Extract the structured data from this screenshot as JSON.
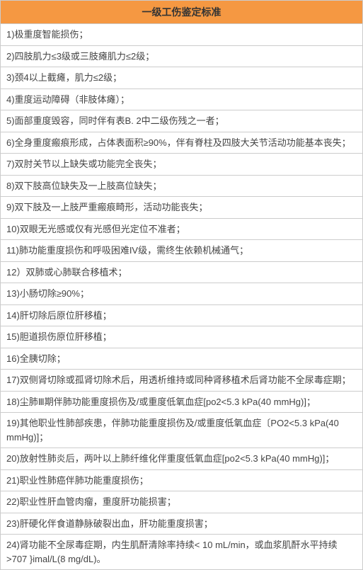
{
  "header": {
    "title": "一级工伤鉴定标准",
    "bg_color": "#f59842",
    "text_color": "#333333",
    "fontsize": 14,
    "font_weight": "bold"
  },
  "table": {
    "border_color": "#cccccc",
    "row_fontsize": 13,
    "row_text_color": "#444444",
    "background_color": "#ffffff",
    "rows": [
      "1)极重度智能损伤；",
      "2)四肢肌力≤3级或三肢瘫肌力≤2级；",
      "3)颈4以上截瘫，肌力≤2级；",
      "4)重度运动障碍（非肢体瘫）；",
      "5)面部重度毁容，同时伴有表B. 2中二级伤残之一者；",
      "6)全身重度瘢痕形成，占体表面积≥90%，伴有脊柱及四肢大关节活动功能基本丧失；",
      "7)双肘关节以上缺失或功能完全丧失；",
      "8)双下肢高位缺失及一上肢高位缺失；",
      "9)双下肢及一上肢严重瘢痕畸形，活动功能丧失；",
      "10)双眼无光感或仅有光感但光定位不准者；",
      "11)肺功能重度损伤和呼吸困难IV级，需终生依赖机械通气；",
      "12）双肺或心肺联合移植术；",
      "13)小肠切除≥90%；",
      "14)肝切除后原位肝移植；",
      "15)胆道损伤原位肝移植；",
      "16)全胰切除；",
      "17)双侧肾切除或孤肾切除术后，用透析维持或同种肾移植术后肾功能不全尿毒症期；",
      "18)尘肺Ⅲ期伴肺功能重度损伤及/或重度低氧血症[po2<5.3 kPa(40 mmHg)]；",
      "19)其他职业性肺部疾患，伴肺功能重度损伤及/或重度低氧血症〔PO2<5.3 kPa(40 mmHg)]；",
      "20)放射性肺炎后，两叶以上肺纤维化伴重度低氧血症[po2<5.3 kPa(40 mmHg)]；",
      "21)职业性肺癌伴肺功能重度损伤；",
      "22)职业性肝血管肉瘤，重度肝功能损害；",
      "23)肝硬化伴食道静脉破裂出血，肝功能重度损害；",
      "24)肾功能不全尿毒症期，内生肌酐清除率持续< 10 mL/min，或血浆肌酐水平持续>707 }imal/L(8 mg/dL)。"
    ]
  }
}
